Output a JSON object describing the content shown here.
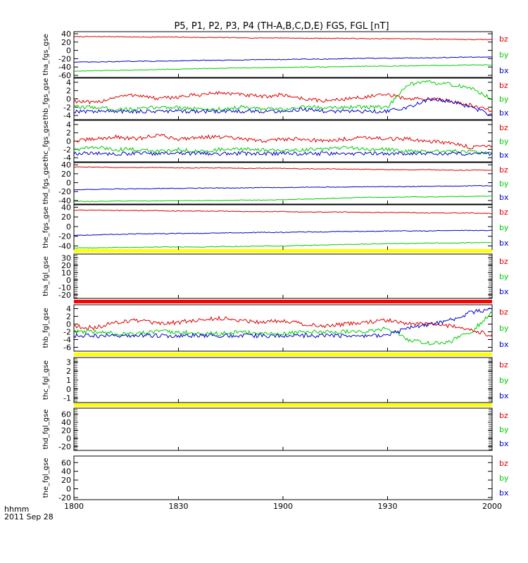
{
  "chart_data": {
    "type": "line",
    "title": "P5, P1, P2, P3, P4 (TH-A,B,C,D,E) FGS, FGL [nT]",
    "time_format_label": "hhmm",
    "date_label": "2011 Sep 28",
    "x_ticks": [
      "1800",
      "1830",
      "1900",
      "1930",
      "2000"
    ],
    "colors": {
      "bz": "#dd0000",
      "by": "#00cc00",
      "bx": "#0000cc",
      "bar_yellow": "#ffff00",
      "bar_red": "#ff0000"
    },
    "panels": [
      {
        "ylabel": "tha_fgs_gse",
        "ylim": [
          -65,
          45
        ],
        "yticks": [
          "40",
          "20",
          "0",
          "-20",
          "-40",
          "-60"
        ],
        "legend": [
          "bz",
          "by",
          "bx"
        ],
        "series": [
          {
            "name": "bz",
            "values": [
              33,
              33,
              33,
              32,
              32,
              32,
              31,
              31,
              30,
              30,
              30,
              29,
              29,
              29,
              28,
              28,
              28,
              27,
              27,
              26,
              26
            ]
          },
          {
            "name": "bx",
            "values": [
              -28,
              -28,
              -27,
              -26,
              -26,
              -25,
              -24,
              -24,
              -23,
              -22,
              -22,
              -21,
              -21,
              -20,
              -19,
              -19,
              -18,
              -18,
              -17,
              -16,
              -16
            ]
          },
          {
            "name": "by",
            "values": [
              -50,
              -49,
              -48,
              -47,
              -46,
              -45,
              -44,
              -43,
              -42,
              -42,
              -41,
              -40,
              -40,
              -39,
              -38,
              -38,
              -37,
              -36,
              -36,
              -35,
              -35
            ]
          }
        ]
      },
      {
        "ylabel": "thb_fgs_gse",
        "ylim": [
          -5,
          5
        ],
        "yticks": [
          "4",
          "2",
          "0",
          "-2",
          "-4"
        ],
        "legend": [
          "bz",
          "by",
          "bx"
        ],
        "series": [
          {
            "name": "bz",
            "values": [
              -0.5,
              -1,
              0.5,
              1,
              0,
              0.5,
              1,
              1.5,
              1,
              0.5,
              1,
              0,
              -0.5,
              0,
              0.5,
              1,
              0,
              0,
              -0.5,
              -1.5,
              -3
            ]
          },
          {
            "name": "by",
            "values": [
              -2,
              -2,
              -2.5,
              -2.5,
              -2,
              -2,
              -2.5,
              -2.5,
              -2,
              -2.5,
              -2.5,
              -2,
              -2,
              -2,
              -2,
              -2,
              3.5,
              4,
              3.5,
              2.5,
              0
            ]
          },
          {
            "name": "bx",
            "values": [
              -3,
              -3,
              -3,
              -3,
              -3,
              -3,
              -3,
              -3,
              -3,
              -3,
              -3,
              -2.5,
              -3,
              -3,
              -3,
              -3,
              -2,
              0,
              -0.5,
              -2,
              -4
            ]
          }
        ]
      },
      {
        "ylabel": "thc_fgs_gse",
        "ylim": [
          -5,
          5
        ],
        "yticks": [
          "4",
          "2",
          "0",
          "-2",
          "-4"
        ],
        "legend": [
          "bz",
          "by",
          "bx"
        ],
        "series": [
          {
            "name": "bz",
            "values": [
              0,
              0.5,
              1,
              0.5,
              1.5,
              0.5,
              1,
              1,
              0.5,
              0,
              0.5,
              0.5,
              0,
              0.5,
              1,
              0.5,
              0.5,
              0,
              -0.5,
              -1.5,
              -1
            ]
          },
          {
            "name": "by",
            "values": [
              -2,
              -1.5,
              -2,
              -2,
              -2.5,
              -2,
              -2.5,
              -2,
              -2,
              -2,
              -2.5,
              -2,
              -2,
              -1.5,
              -2,
              -2,
              -2.5,
              -2.5,
              -2.5,
              -2.5,
              -3
            ]
          },
          {
            "name": "bx",
            "values": [
              -3,
              -3,
              -3,
              -3,
              -3,
              -3,
              -3,
              -3,
              -3,
              -3,
              -3,
              -3,
              -3,
              -3,
              -3,
              -3,
              -3,
              -3,
              -3,
              -3,
              -3
            ]
          }
        ]
      },
      {
        "ylabel": "thd_fgs_gse",
        "ylim": [
          -48,
          45
        ],
        "yticks": [
          "40",
          "20",
          "0",
          "-20",
          "-40"
        ],
        "legend": [
          "bz",
          "by",
          "bx"
        ],
        "series": [
          {
            "name": "bz",
            "values": [
              35,
              35,
              34,
              34,
              34,
              33,
              33,
              33,
              32,
              32,
              32,
              31,
              31,
              30,
              30,
              29,
              29,
              29,
              28,
              28,
              28
            ]
          },
          {
            "name": "bx",
            "values": [
              -16,
              -15,
              -14,
              -14,
              -13,
              -13,
              -12,
              -12,
              -12,
              -11,
              -11,
              -10,
              -10,
              -10,
              -9,
              -9,
              -9,
              -8,
              -8,
              -7,
              -7
            ]
          },
          {
            "name": "by",
            "values": [
              -42,
              -42,
              -41,
              -41,
              -41,
              -40,
              -40,
              -40,
              -39,
              -39,
              -38,
              -37,
              -36,
              -34,
              -33,
              -33,
              -32,
              -32,
              -31,
              -31,
              -30
            ]
          }
        ]
      },
      {
        "ylabel": "the_fgs_gse",
        "ylim": [
          -48,
          45
        ],
        "yticks": [
          "40",
          "20",
          "0",
          "-20",
          "-40"
        ],
        "legend": [
          "bz",
          "by",
          "bx"
        ],
        "series": [
          {
            "name": "bz",
            "values": [
              34,
              34,
              33,
              33,
              33,
              32,
              32,
              32,
              31,
              31,
              31,
              30,
              30,
              30,
              29,
              29,
              29,
              28,
              28,
              28,
              27
            ]
          },
          {
            "name": "bx",
            "values": [
              -18,
              -17,
              -16,
              -15,
              -15,
              -14,
              -14,
              -13,
              -13,
              -12,
              -12,
              -11,
              -11,
              -10,
              -10,
              -9,
              -9,
              -9,
              -8,
              -8,
              -8
            ]
          },
          {
            "name": "by",
            "values": [
              -44,
              -44,
              -43,
              -43,
              -42,
              -42,
              -42,
              -41,
              -41,
              -40,
              -40,
              -39,
              -38,
              -37,
              -36,
              -35,
              -35,
              -34,
              -34,
              -33,
              -33
            ]
          }
        ]
      },
      {
        "ylabel": "tha_fgl_gse",
        "ylim": [
          -25,
          35
        ],
        "yticks": [
          "30",
          "20",
          "10",
          "0",
          "-10",
          "-20"
        ],
        "legend": [
          "bz",
          "by",
          "bx"
        ],
        "bars": [
          "yellow",
          "red"
        ],
        "series": []
      },
      {
        "ylabel": "thb_fgl_gse",
        "ylim": [
          -7,
          5
        ],
        "yticks": [
          "4",
          "2",
          "0",
          "-2",
          "-4",
          "-6"
        ],
        "legend": [
          "bz",
          "by",
          "bx"
        ],
        "bars": [
          "red"
        ],
        "series": [
          {
            "name": "bz",
            "values": [
              -0.5,
              -1,
              0.5,
              1,
              0,
              0.5,
              1,
              1.5,
              1,
              0.5,
              1,
              0,
              -0.5,
              0,
              0.5,
              1,
              0,
              0,
              -0.5,
              -1.5,
              -3
            ]
          },
          {
            "name": "by",
            "values": [
              -2,
              -2,
              -2.5,
              -2.5,
              -2,
              -2,
              -2.5,
              -2.5,
              -2,
              -2.5,
              -2.5,
              -2,
              -2,
              -2,
              -2,
              -1,
              -4,
              -5,
              -4.5,
              -2,
              3
            ]
          },
          {
            "name": "bx",
            "values": [
              -3,
              -3,
              -3,
              -3,
              -3,
              -3,
              -3,
              -3,
              -3,
              -3,
              -3,
              -3,
              -3,
              -3,
              -3,
              -3,
              -1,
              0,
              1,
              3,
              4
            ]
          }
        ]
      },
      {
        "ylabel": "thc_fgl_gse",
        "ylim": [
          -1.5,
          3.5
        ],
        "yticks": [
          "3",
          "2",
          "1",
          "0",
          "-1"
        ],
        "legend": [
          "bz",
          "by",
          "bx"
        ],
        "bars": [
          "yellow"
        ],
        "series": []
      },
      {
        "ylabel": "thd_fgl_gse",
        "ylim": [
          -30,
          75
        ],
        "yticks": [
          "60",
          "40",
          "20",
          "0",
          "-20"
        ],
        "legend": [
          "bz",
          "by",
          "bx"
        ],
        "bars": [
          "yellow"
        ],
        "series": []
      },
      {
        "ylabel": "the_fgl_gse",
        "ylim": [
          -25,
          75
        ],
        "yticks": [
          "60",
          "40",
          "20",
          "0",
          "-20"
        ],
        "legend": [
          "bz",
          "by",
          "bx"
        ],
        "series": []
      }
    ]
  }
}
